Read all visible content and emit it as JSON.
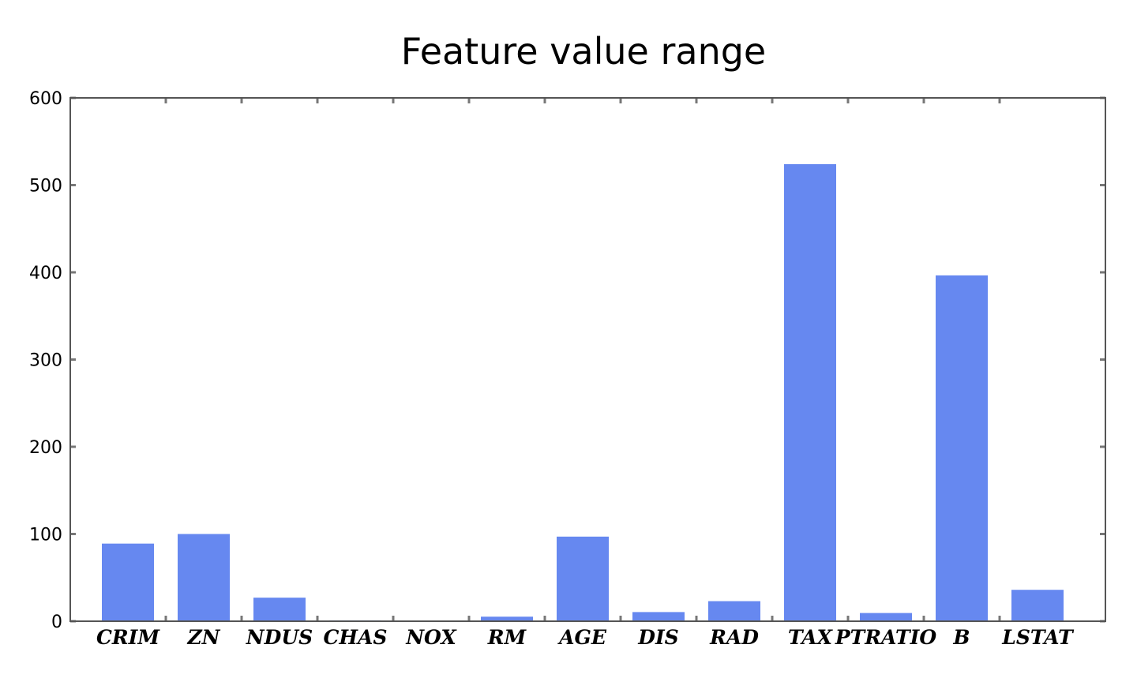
{
  "chart_data": {
    "type": "bar",
    "title": "Feature value range",
    "xlabel": "",
    "ylabel": "",
    "categories": [
      "CRIM",
      "ZN",
      "NDUS",
      "CHAS",
      "NOX",
      "RM",
      "AGE",
      "DIS",
      "RAD",
      "TAX",
      "PTRATIO",
      "B",
      "LSTAT"
    ],
    "values": [
      89,
      100,
      27,
      1,
      0.5,
      5.2,
      97,
      10.5,
      23,
      524,
      9.4,
      396.5,
      36
    ],
    "ylim": [
      0,
      600
    ],
    "yticks": [
      0,
      100,
      200,
      300,
      400,
      500,
      600
    ],
    "ytick_labels": [
      "0",
      "100",
      "200",
      "300",
      "400",
      "500",
      "600"
    ],
    "grid": false,
    "colors": {
      "bar": "#6688f0",
      "frame": "#555555"
    }
  }
}
